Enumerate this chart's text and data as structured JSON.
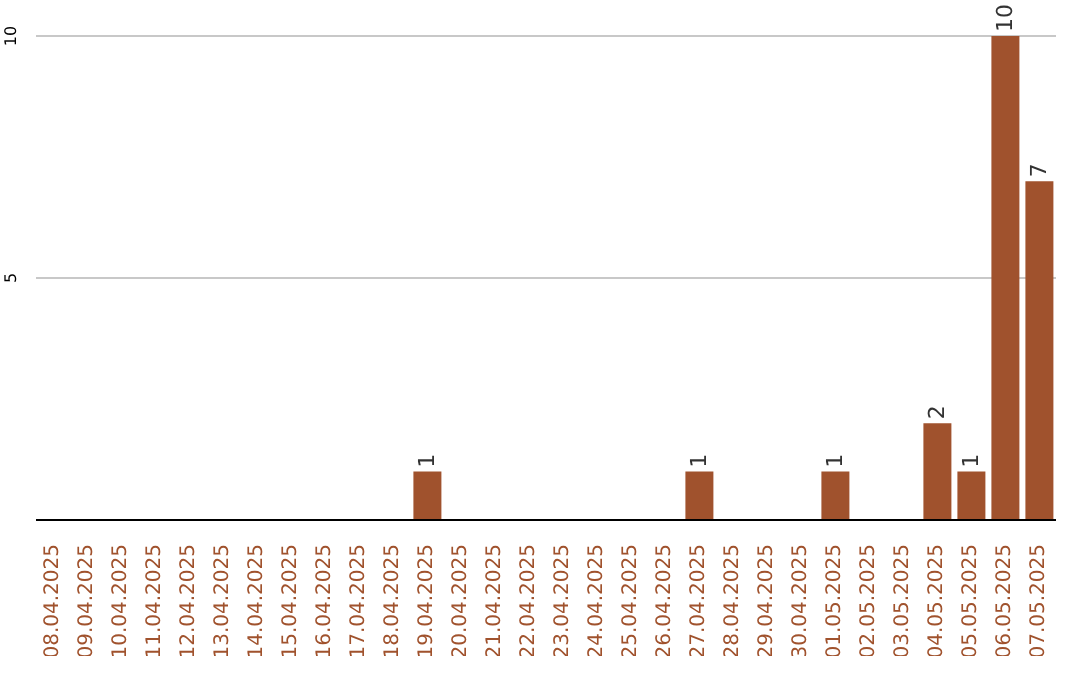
{
  "chart_data": {
    "type": "bar",
    "categories": [
      "08.04.2025",
      "09.04.2025",
      "10.04.2025",
      "11.04.2025",
      "12.04.2025",
      "13.04.2025",
      "14.04.2025",
      "15.04.2025",
      "16.04.2025",
      "17.04.2025",
      "18.04.2025",
      "19.04.2025",
      "20.04.2025",
      "21.04.2025",
      "22.04.2025",
      "23.04.2025",
      "24.04.2025",
      "25.04.2025",
      "26.04.2025",
      "27.04.2025",
      "28.04.2025",
      "29.04.2025",
      "30.04.2025",
      "01.05.2025",
      "02.05.2025",
      "03.05.2025",
      "04.05.2025",
      "05.05.2025",
      "06.05.2025",
      "07.05.2025"
    ],
    "values": [
      0,
      0,
      0,
      0,
      0,
      0,
      0,
      0,
      0,
      0,
      0,
      1,
      0,
      0,
      0,
      0,
      0,
      0,
      0,
      1,
      0,
      0,
      0,
      1,
      0,
      0,
      2,
      1,
      10,
      7
    ],
    "value_labels": [
      null,
      null,
      null,
      null,
      null,
      null,
      null,
      null,
      null,
      null,
      null,
      "1",
      null,
      null,
      null,
      null,
      null,
      null,
      null,
      "1",
      null,
      null,
      null,
      "1",
      null,
      null,
      "2",
      "1",
      "10",
      "7"
    ],
    "color": "#a0522d",
    "ylim": [
      0,
      10
    ],
    "yticks": [
      5,
      10
    ],
    "grid": "y"
  }
}
